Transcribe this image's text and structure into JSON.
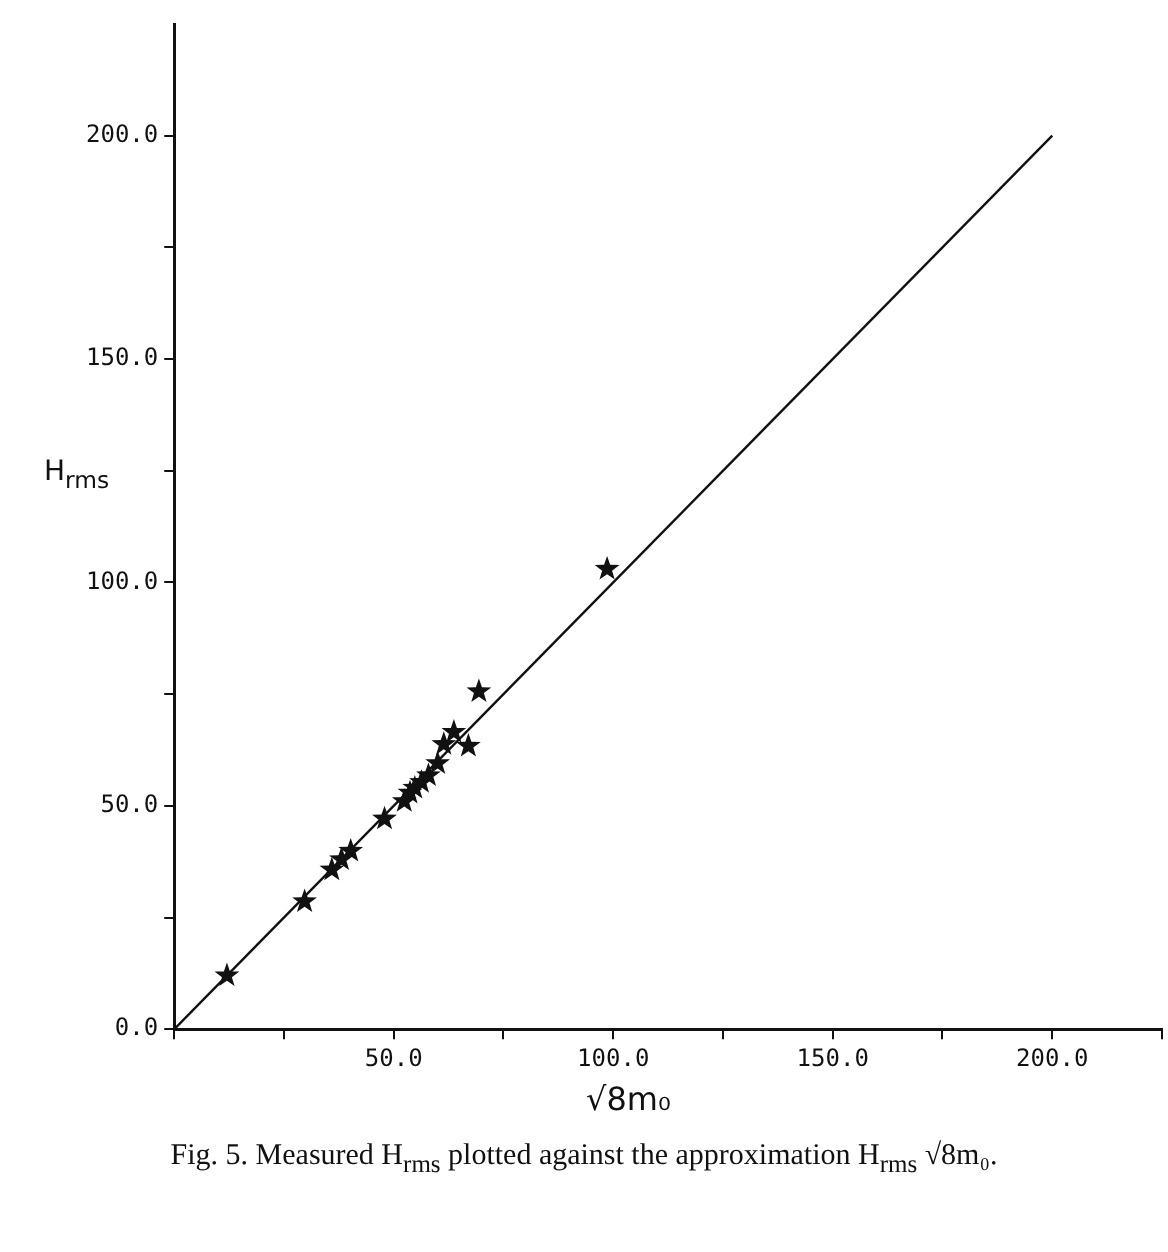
{
  "chart_data": {
    "type": "scatter",
    "xlabel": "√8m₀",
    "ylabel": "H$_{rms}$",
    "annotations": [
      "Fig. 5. Measured H$_{rms}$ plotted against the approximation H$_{rms}$ √8m₀."
    ],
    "x": [
      12,
      29.7,
      35.9,
      38.1,
      40.2,
      47.9,
      52.4,
      53.7,
      54.8,
      56.3,
      57.9,
      60,
      61.4,
      63.7,
      67,
      69.4,
      98.6
    ],
    "series": [
      {
        "color": "#111111",
        "marker": "star",
        "values": [
          12,
          28.6,
          35.7,
          38,
          39.9,
          47.1,
          51,
          52.9,
          54,
          55.3,
          56.8,
          59.5,
          63.8,
          66.5,
          63.4,
          75.6,
          103
        ]
      },
      {
        "type": "line",
        "color": "#111111",
        "marker": "none",
        "line_style": "solid",
        "x": [
          0,
          200
        ],
        "values": [
          0,
          200
        ]
      }
    ],
    "xlim": [
      0,
      225
    ],
    "ylim": [
      0,
      225
    ],
    "xticks": [
      {
        "value": 0,
        "label": null
      },
      {
        "value": 25,
        "label": null
      },
      {
        "value": 50,
        "label": "50.0"
      },
      {
        "value": 75,
        "label": null
      },
      {
        "value": 100,
        "label": "100.0"
      },
      {
        "value": 125,
        "label": null
      },
      {
        "value": 150,
        "label": "150.0"
      },
      {
        "value": 175,
        "label": null
      },
      {
        "value": 200,
        "label": "200.0"
      },
      {
        "value": 225,
        "label": null
      }
    ],
    "yticks": [
      {
        "value": 0,
        "label": "0.0"
      },
      {
        "value": 25,
        "label": null
      },
      {
        "value": 50,
        "label": "50.0"
      },
      {
        "value": 75,
        "label": null
      },
      {
        "value": 100,
        "label": "100.0"
      },
      {
        "value": 125,
        "label": null
      },
      {
        "value": 150,
        "label": "150.0"
      },
      {
        "value": 175,
        "label": null
      },
      {
        "value": 200,
        "label": "200.0"
      }
    ],
    "grid": false,
    "legend": false
  }
}
